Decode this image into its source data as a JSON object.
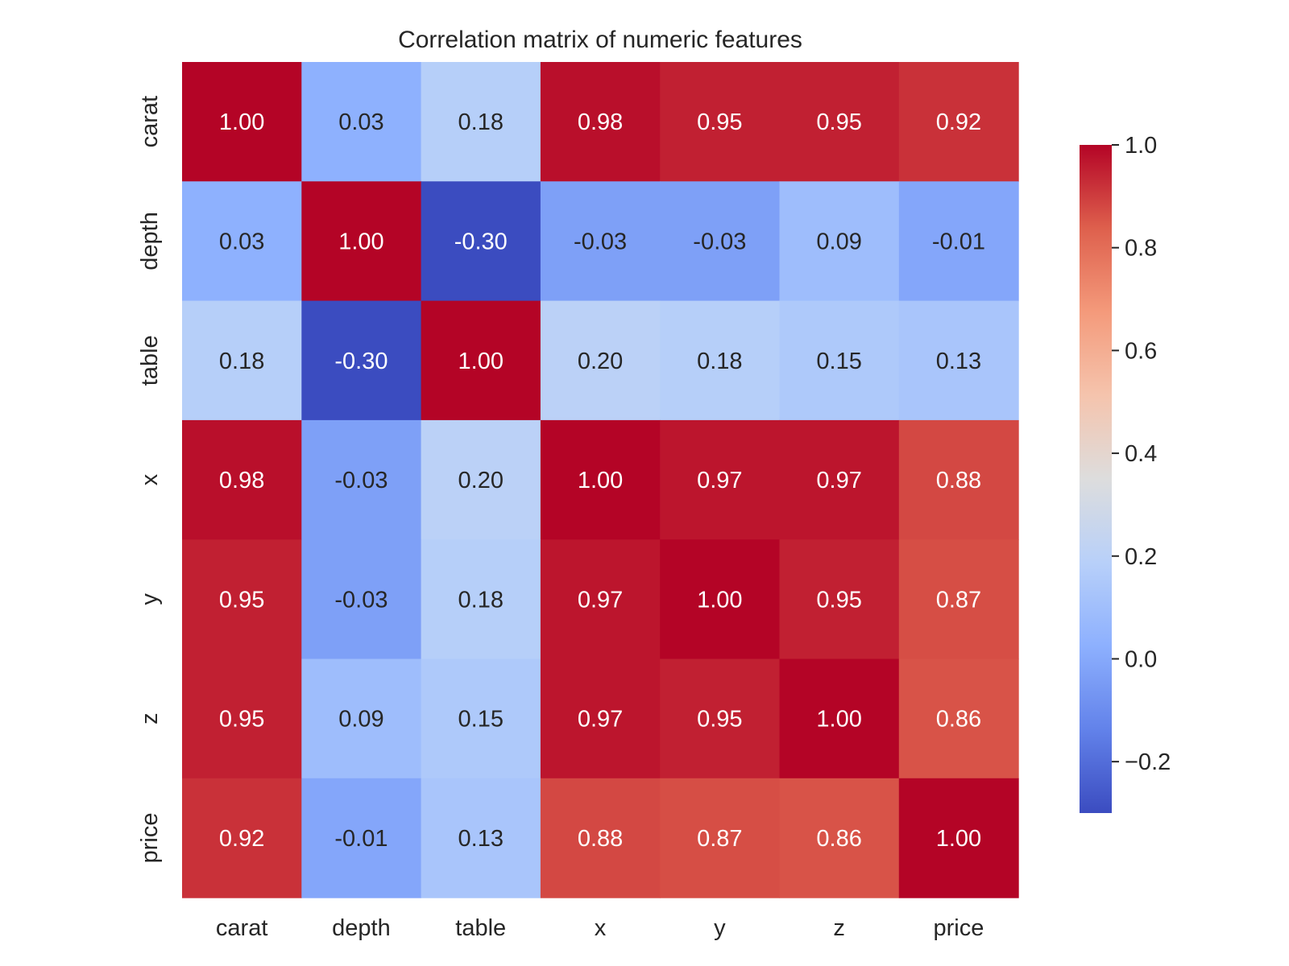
{
  "chart_data": {
    "type": "heatmap",
    "title": "Correlation matrix of numeric features",
    "x_labels": [
      "carat",
      "depth",
      "table",
      "x",
      "y",
      "z",
      "price"
    ],
    "y_labels": [
      "carat",
      "depth",
      "table",
      "x",
      "y",
      "z",
      "price"
    ],
    "values": [
      [
        1.0,
        0.03,
        0.18,
        0.98,
        0.95,
        0.95,
        0.92
      ],
      [
        0.03,
        1.0,
        -0.3,
        -0.03,
        -0.03,
        0.09,
        -0.01
      ],
      [
        0.18,
        -0.3,
        1.0,
        0.2,
        0.18,
        0.15,
        0.13
      ],
      [
        0.98,
        -0.03,
        0.2,
        1.0,
        0.97,
        0.97,
        0.88
      ],
      [
        0.95,
        -0.03,
        0.18,
        0.97,
        1.0,
        0.95,
        0.87
      ],
      [
        0.95,
        0.09,
        0.15,
        0.97,
        0.95,
        1.0,
        0.86
      ],
      [
        0.92,
        -0.01,
        0.13,
        0.88,
        0.87,
        0.86,
        1.0
      ]
    ],
    "value_format": "2 decimals",
    "colormap": "coolwarm",
    "vmin": -0.3,
    "vmax": 1.0,
    "colorbar": {
      "ticks": [
        1.0,
        0.8,
        0.6,
        0.4,
        0.2,
        0.0,
        -0.2
      ],
      "tick_labels": [
        "1.0",
        "0.8",
        "0.6",
        "0.4",
        "0.2",
        "0.0",
        "−0.2"
      ],
      "placement": "right"
    },
    "grid": false
  }
}
